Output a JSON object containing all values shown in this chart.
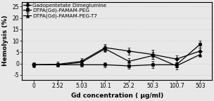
{
  "x_labels": [
    "0",
    "2.52",
    "5.03",
    "10.1",
    "25.2",
    "50.3",
    "100.7",
    "503"
  ],
  "x_values": [
    0,
    2.52,
    5.03,
    10.1,
    25.2,
    50.3,
    100.7,
    503
  ],
  "series": [
    {
      "label": "Gadopentetate Dimeglumine",
      "marker": "D",
      "y": [
        -0.5,
        -0.3,
        1.0,
        7.0,
        5.5,
        4.0,
        2.0,
        5.5
      ],
      "yerr": [
        1.0,
        1.0,
        1.5,
        1.5,
        1.5,
        2.0,
        1.5,
        1.5
      ]
    },
    {
      "label": "DTPA(Gd)-PAMAM-PEG",
      "marker": "s",
      "y": [
        -0.5,
        -0.5,
        -0.5,
        -0.5,
        -1.0,
        -0.5,
        -0.5,
        8.5
      ],
      "yerr": [
        0.8,
        0.5,
        0.8,
        1.0,
        1.2,
        1.5,
        1.0,
        1.5
      ]
    },
    {
      "label": "DTPA(Gd)-PAMAM-PEG-T7",
      "marker": "^",
      "y": [
        -0.5,
        -0.5,
        0.5,
        6.5,
        1.0,
        3.5,
        -1.0,
        4.0
      ],
      "yerr": [
        0.8,
        0.5,
        1.0,
        1.5,
        1.5,
        1.5,
        1.5,
        1.0
      ]
    }
  ],
  "xlabel": "Gd concentration ( μg/ml)",
  "ylabel": "Hemolysis (%)",
  "ylim": [
    -7,
    27
  ],
  "yticks": [
    -5,
    0,
    5,
    10,
    15,
    20,
    25
  ],
  "line_color": "black",
  "bg_color": "#e8e8e8",
  "plot_bg": "#e8e8e8",
  "label_fontsize": 6.5,
  "tick_fontsize": 5.5,
  "legend_fontsize": 5.2,
  "markersize": 3
}
